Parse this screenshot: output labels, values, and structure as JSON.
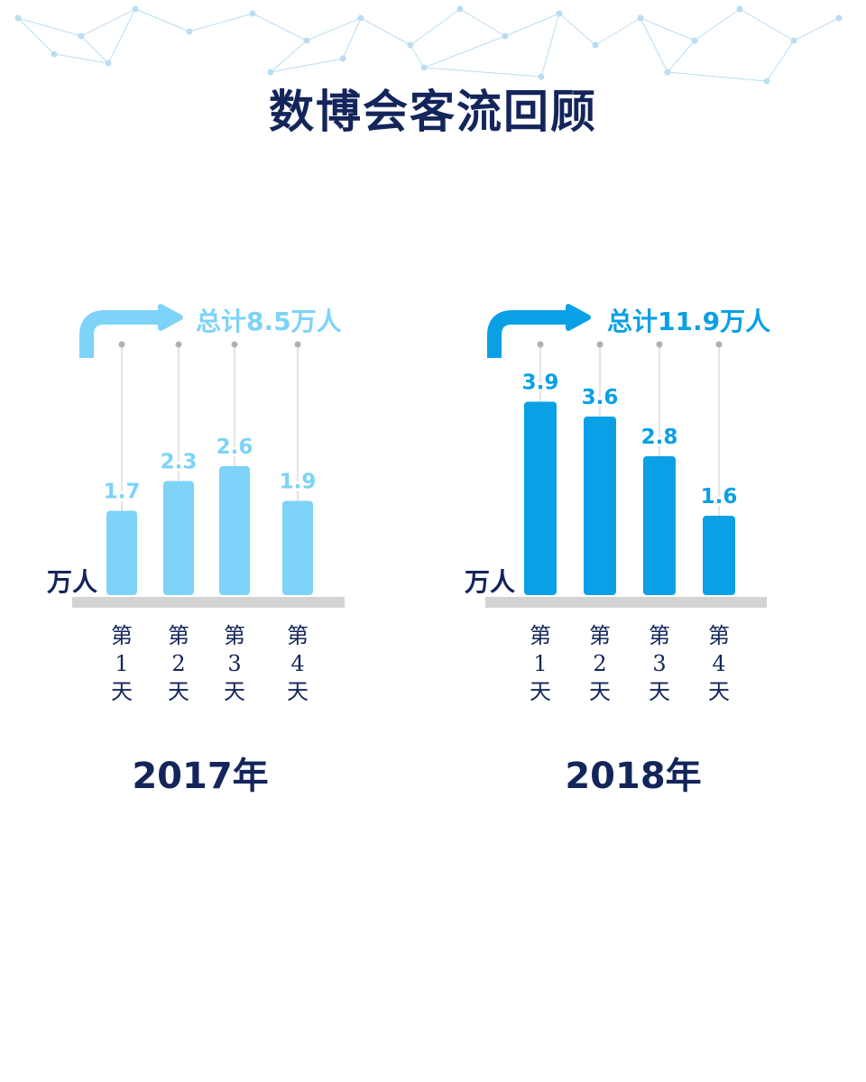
{
  "title": "数博会客流回顾",
  "chart_data": [
    {
      "type": "bar",
      "year_label": "2017年",
      "total_label": "总计8.5万人",
      "unit_label": "万人",
      "categories": [
        [
          "第",
          "1",
          "天"
        ],
        [
          "第",
          "2",
          "天"
        ],
        [
          "第",
          "3",
          "天"
        ],
        [
          "第",
          "4",
          "天"
        ]
      ],
      "values": [
        1.7,
        2.3,
        2.6,
        1.9
      ],
      "value_labels": [
        "1.7",
        "2.3",
        "2.6",
        "1.9"
      ],
      "color": "#7dd3f8"
    },
    {
      "type": "bar",
      "year_label": "2018年",
      "total_label": "总计11.9万人",
      "unit_label": "万人",
      "categories": [
        [
          "第",
          "1",
          "天"
        ],
        [
          "第",
          "2",
          "天"
        ],
        [
          "第",
          "3",
          "天"
        ],
        [
          "第",
          "4",
          "天"
        ]
      ],
      "values": [
        3.9,
        3.6,
        2.8,
        1.6
      ],
      "value_labels": [
        "3.9",
        "3.6",
        "2.8",
        "1.6"
      ],
      "color": "#0aa0e6"
    }
  ],
  "colors": {
    "title": "#13255a",
    "baseline": "#d3d3d3",
    "guide": "#c8c8c8",
    "network": "#b9def3"
  }
}
